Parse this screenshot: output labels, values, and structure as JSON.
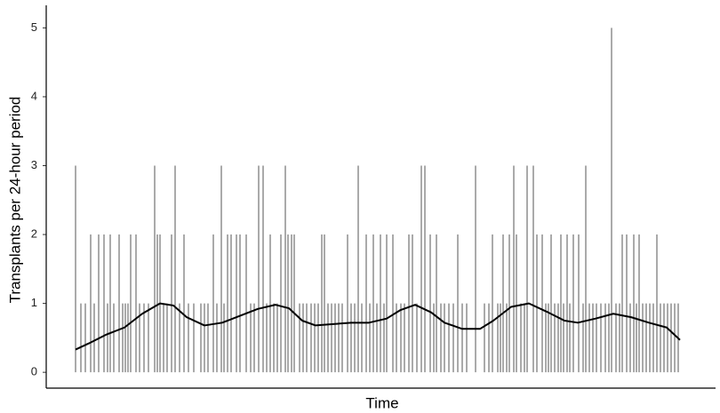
{
  "chart_data": {
    "type": "spike",
    "ylabel": "Transplants per 24-hour period",
    "xlabel": "Time",
    "xlim": [
      -33,
      720
    ],
    "ylim": [
      -0.23,
      5.25
    ],
    "yticks": [
      0,
      1,
      2,
      3,
      4,
      5
    ],
    "grid": false,
    "series": [
      {
        "type": "spike",
        "color": "#555555",
        "x": [
          0,
          6,
          11,
          17,
          21,
          26,
          32,
          36,
          39,
          43,
          49,
          53,
          56,
          59,
          62,
          68,
          72,
          77,
          82,
          89,
          92,
          95,
          99,
          103,
          108,
          112,
          117,
          122,
          127,
          133,
          141,
          145,
          149,
          155,
          159,
          164,
          167,
          171,
          175,
          181,
          185,
          192,
          197,
          201,
          206,
          211,
          215,
          219,
          223,
          227,
          231,
          236,
          239,
          243,
          246,
          252,
          256,
          260,
          265,
          269,
          273,
          277,
          280,
          284,
          288,
          292,
          296,
          300,
          306,
          310,
          314,
          318,
          322,
          327,
          331,
          335,
          339,
          343,
          347,
          350,
          357,
          361,
          366,
          370,
          375,
          379,
          384,
          389,
          393,
          399,
          403,
          406,
          411,
          415,
          420,
          425,
          430,
          435,
          440,
          450,
          460,
          465,
          469,
          475,
          478,
          481,
          485,
          488,
          493,
          496,
          501,
          505,
          508,
          515,
          519,
          525,
          529,
          532,
          535,
          539,
          543,
          546,
          549,
          553,
          556,
          560,
          566,
          571,
          574,
          578,
          582,
          586,
          591,
          596,
          600,
          603,
          608,
          612,
          615,
          620,
          624,
          628,
          631,
          634,
          638,
          642,
          646,
          650,
          654,
          658,
          662,
          666,
          670,
          674,
          678
        ],
        "values": [
          3,
          1,
          1,
          2,
          1,
          2,
          2,
          1,
          2,
          1,
          2,
          1,
          1,
          1,
          2,
          2,
          1,
          1,
          1,
          3,
          2,
          2,
          1,
          1,
          2,
          3,
          1,
          2,
          1,
          1,
          1,
          1,
          1,
          2,
          1,
          3,
          1,
          2,
          2,
          2,
          2,
          2,
          1,
          1,
          3,
          3,
          1,
          2,
          1,
          1,
          2,
          3,
          2,
          2,
          2,
          1,
          1,
          1,
          1,
          1,
          1,
          2,
          2,
          1,
          1,
          1,
          1,
          1,
          2,
          1,
          1,
          3,
          1,
          2,
          1,
          2,
          1,
          2,
          1,
          2,
          2,
          1,
          1,
          1,
          2,
          2,
          1,
          3,
          3,
          2,
          1,
          2,
          1,
          1,
          1,
          1,
          2,
          1,
          1,
          3,
          1,
          1,
          2,
          1,
          1,
          2,
          1,
          2,
          3,
          2,
          1,
          1,
          3,
          3,
          2,
          2,
          1,
          1,
          2,
          1,
          1,
          2,
          1,
          2,
          1,
          2,
          2,
          1,
          3,
          1,
          1,
          1,
          1,
          1,
          1,
          5,
          1,
          1,
          2,
          2,
          1,
          2,
          1,
          2,
          1,
          1,
          1,
          1,
          2,
          1,
          1,
          1,
          1,
          1,
          1
        ]
      },
      {
        "type": "line",
        "color": "#000000",
        "x": [
          0,
          15,
          35,
          55,
          75,
          95,
          110,
          125,
          145,
          165,
          185,
          205,
          225,
          240,
          255,
          270,
          290,
          310,
          330,
          350,
          365,
          382,
          400,
          415,
          435,
          455,
          470,
          490,
          510,
          530,
          550,
          565,
          585,
          605,
          625,
          645,
          665,
          680
        ],
        "values": [
          0.33,
          0.42,
          0.55,
          0.65,
          0.85,
          1.0,
          0.97,
          0.8,
          0.68,
          0.72,
          0.82,
          0.92,
          0.98,
          0.93,
          0.75,
          0.68,
          0.7,
          0.72,
          0.72,
          0.78,
          0.9,
          0.98,
          0.87,
          0.72,
          0.63,
          0.63,
          0.75,
          0.95,
          1.0,
          0.88,
          0.75,
          0.72,
          0.78,
          0.85,
          0.8,
          0.72,
          0.65,
          0.47
        ]
      }
    ]
  }
}
